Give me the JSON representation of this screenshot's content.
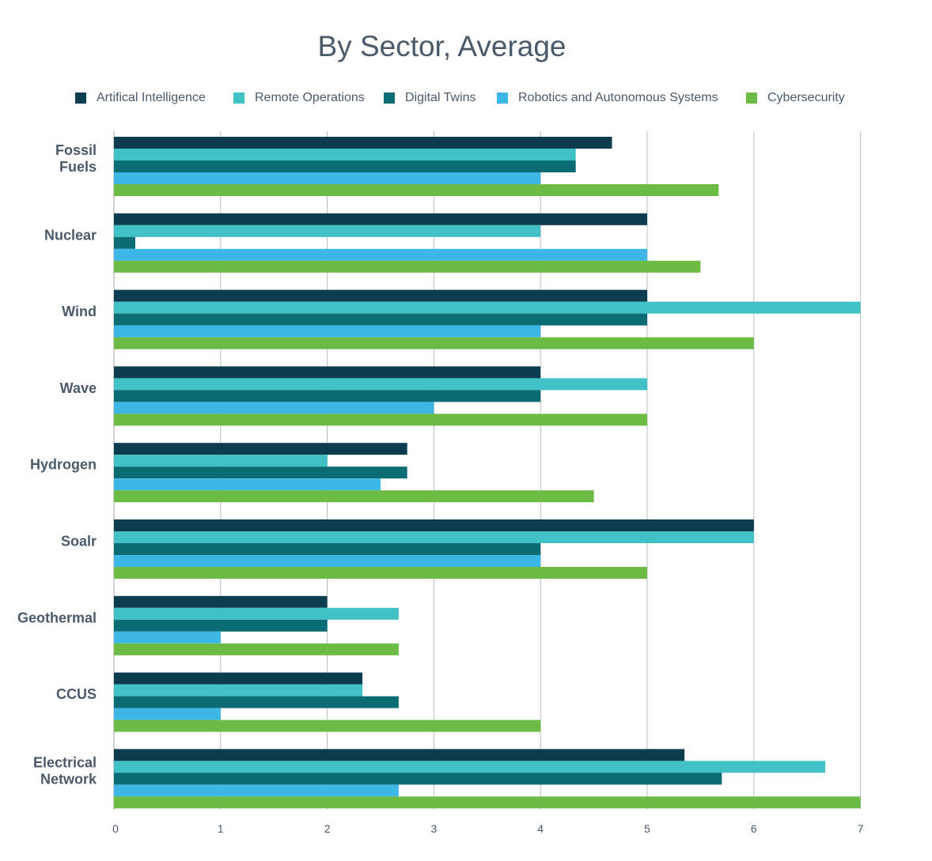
{
  "chart_data": {
    "type": "bar",
    "orientation": "horizontal",
    "title": "By Sector, Average",
    "xlabel": "",
    "ylabel": "",
    "xlim": [
      0,
      7
    ],
    "xticks": [
      "0",
      "1",
      "2",
      "3",
      "4",
      "5",
      "6",
      "7"
    ],
    "grid": true,
    "legend_position": "top",
    "categories": [
      [
        "Fossil",
        "Fuels"
      ],
      [
        "Nuclear"
      ],
      [
        "Wind"
      ],
      [
        "Wave"
      ],
      [
        "Hydrogen"
      ],
      [
        "Soalr"
      ],
      [
        "Geothermal"
      ],
      [
        "CCUS"
      ],
      [
        "Electrical",
        "Network"
      ]
    ],
    "series": [
      {
        "name": "Artifical Intelligence",
        "color": "#0b3d4e",
        "values": [
          4.67,
          5.0,
          5.0,
          4.0,
          2.75,
          6.0,
          2.0,
          2.33,
          5.35
        ]
      },
      {
        "name": "Remote Operations",
        "color": "#3fc1c5",
        "values": [
          4.33,
          4.0,
          7.0,
          5.0,
          2.0,
          6.0,
          2.67,
          2.33,
          6.67
        ]
      },
      {
        "name": "Digital Twins",
        "color": "#0b6c74",
        "values": [
          4.33,
          0.2,
          5.0,
          4.0,
          2.75,
          4.0,
          2.0,
          2.67,
          5.7
        ]
      },
      {
        "name": "Robotics and Autonomous Systems",
        "color": "#3db8e6",
        "values": [
          4.0,
          5.0,
          4.0,
          3.0,
          2.5,
          4.0,
          1.0,
          1.0,
          2.67
        ]
      },
      {
        "name": "Cybersecurity",
        "color": "#6bbb44",
        "values": [
          5.67,
          5.5,
          6.0,
          5.0,
          4.5,
          5.0,
          2.67,
          4.0,
          7.0
        ]
      }
    ]
  }
}
